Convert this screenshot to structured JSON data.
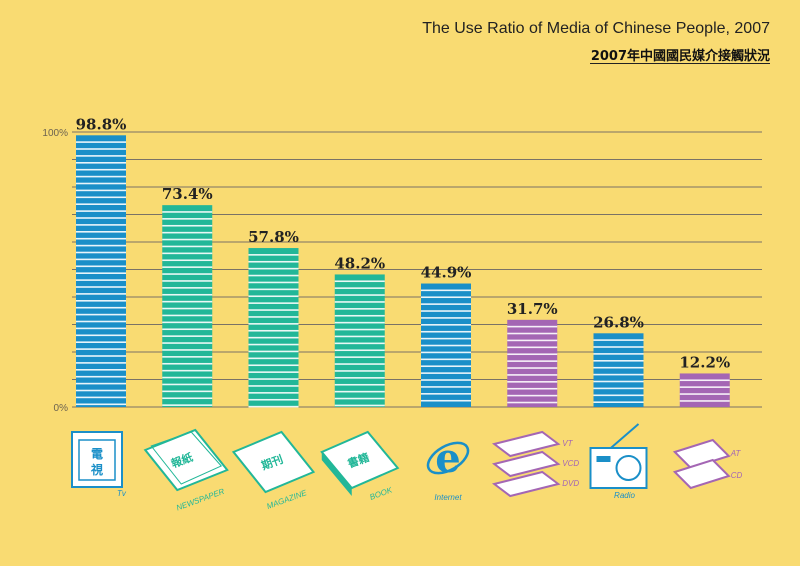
{
  "colors": {
    "background": "#f9db72",
    "blue": "#1a8fc8",
    "green": "#22b798",
    "purple": "#a466b4",
    "grid": "#7a7266"
  },
  "chart_data": {
    "type": "bar",
    "title": "The Use Ratio of Media of Chinese People, 2007",
    "subtitle": "2007年中國國民媒介接觸狀況",
    "ylim": [
      0,
      100
    ],
    "yticks": [
      "0%",
      "100%"
    ],
    "categories": [
      "Tv",
      "NEWSPAPER",
      "MAGAZINE",
      "BOOK",
      "Internet",
      "VT / VCD / DVD",
      "Radio",
      "AT / CD"
    ],
    "values": [
      98.8,
      73.4,
      57.8,
      48.2,
      44.9,
      31.7,
      26.8,
      12.2
    ],
    "value_labels": [
      "98.8%",
      "73.4%",
      "57.8%",
      "48.2%",
      "44.9%",
      "31.7%",
      "26.8%",
      "12.2%"
    ],
    "bar_colors": [
      "blue",
      "green",
      "green",
      "green",
      "blue",
      "purple",
      "blue",
      "purple"
    ],
    "icons": [
      "tv-icon",
      "newspaper-icon",
      "magazine-icon",
      "book-icon",
      "internet-icon",
      "video-media-icon",
      "radio-icon",
      "audio-media-icon"
    ],
    "icon_text": {
      "tv": "電視",
      "newspaper": "報紙",
      "magazine": "期刊",
      "book": "書籍",
      "video": [
        "VT",
        "VCD",
        "DVD"
      ],
      "audio": [
        "AT",
        "CD"
      ]
    },
    "grid": true,
    "legend": "none"
  }
}
